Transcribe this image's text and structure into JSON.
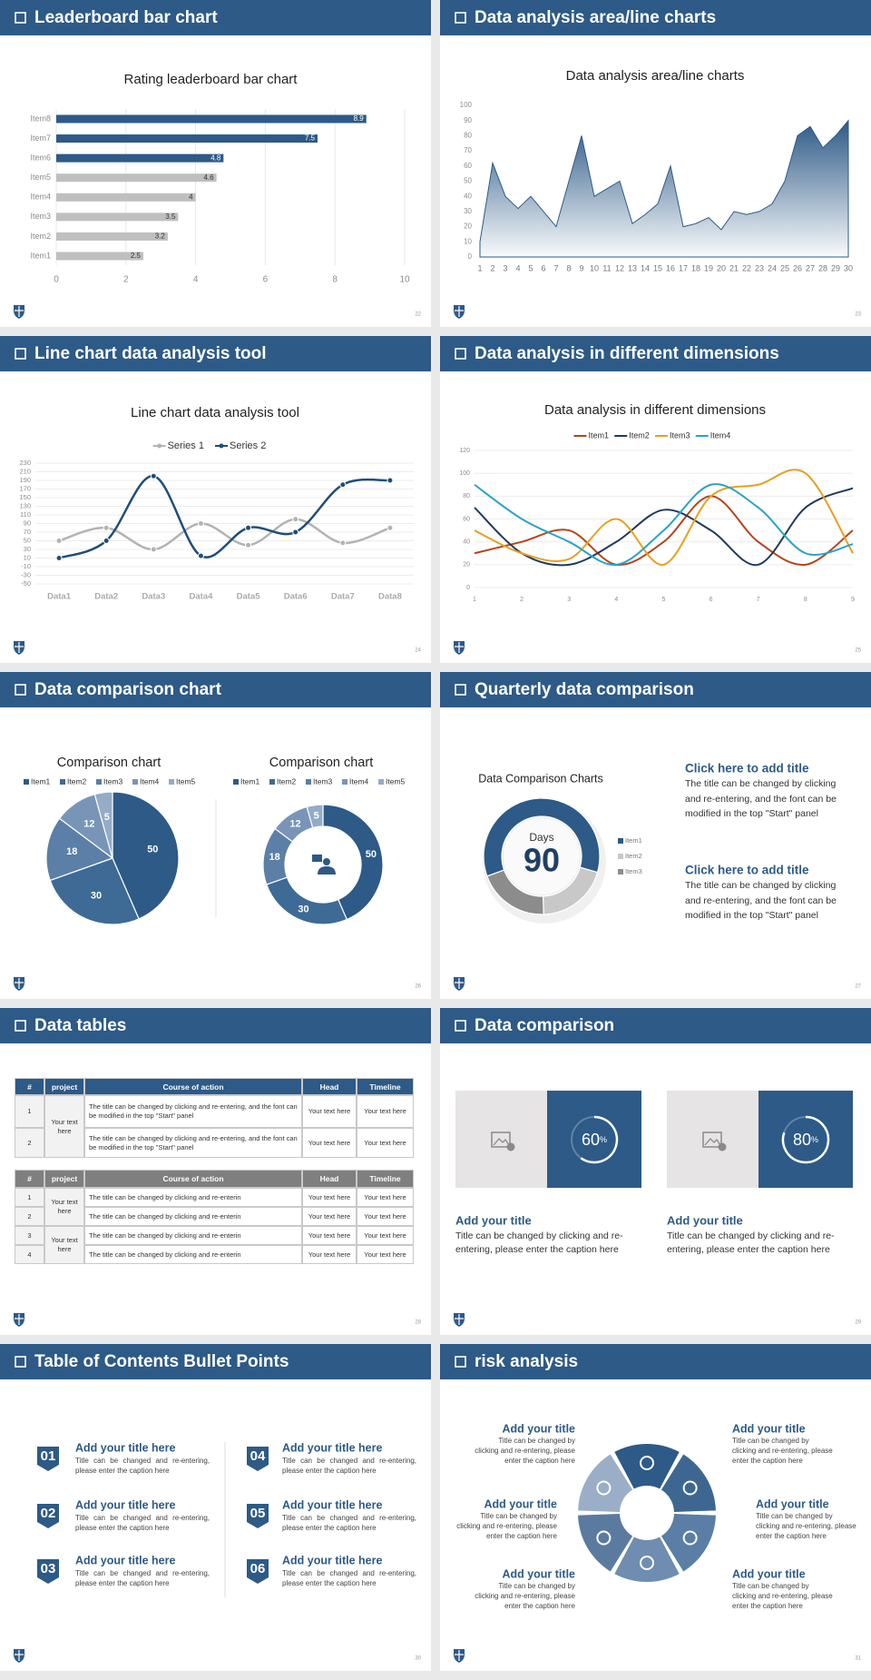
{
  "slides": [
    {
      "header": "Leaderboard bar chart",
      "page": "22",
      "chart_data": {
        "type": "bar",
        "orientation": "horizontal",
        "title": "Rating leaderboard bar chart",
        "categories": [
          "Item1",
          "Item2",
          "Item3",
          "Item4",
          "Item5",
          "Item6",
          "Item7",
          "Item8"
        ],
        "values": [
          2.5,
          3.2,
          3.5,
          4,
          4.6,
          4.8,
          7.5,
          8.9
        ],
        "colors": [
          "#bfbfbf",
          "#bfbfbf",
          "#bfbfbf",
          "#bfbfbf",
          "#bfbfbf",
          "#2d5a87",
          "#2d5a87",
          "#2d5a87"
        ],
        "xlim": [
          0,
          10
        ],
        "xticks": [
          0,
          2,
          4,
          6,
          8,
          10
        ],
        "grid": true
      }
    },
    {
      "header": "Data analysis area/line charts",
      "page": "23",
      "chart_data": {
        "type": "area",
        "title": "Data analysis area/line charts",
        "x": [
          1,
          2,
          3,
          4,
          5,
          6,
          7,
          8,
          9,
          10,
          11,
          12,
          13,
          14,
          15,
          16,
          17,
          18,
          19,
          20,
          21,
          22,
          23,
          24,
          25,
          26,
          27,
          28,
          29,
          30
        ],
        "values": [
          10,
          62,
          40,
          32,
          40,
          30,
          20,
          50,
          80,
          40,
          45,
          50,
          22,
          28,
          35,
          60,
          20,
          22,
          26,
          18,
          30,
          28,
          30,
          35,
          50,
          80,
          86,
          72,
          80,
          90
        ],
        "color": "#2d5a87",
        "xlim": [
          1,
          30
        ],
        "ylim": [
          0,
          100
        ],
        "yticks": [
          0,
          10,
          20,
          30,
          40,
          50,
          60,
          70,
          80,
          90,
          100
        ]
      }
    },
    {
      "header": "Line chart data analysis tool",
      "page": "24",
      "chart_data": {
        "type": "line",
        "smooth": true,
        "markers": true,
        "title": "Line chart data analysis tool",
        "categories": [
          "Data1",
          "Data2",
          "Data3",
          "Data4",
          "Data5",
          "Data6",
          "Data7",
          "Data8"
        ],
        "series": [
          {
            "name": "Series 1",
            "color": "#b3b3b3",
            "values": [
              50,
              80,
              30,
              90,
              40,
              100,
              45,
              80
            ]
          },
          {
            "name": "Series 2",
            "color": "#1f4e79",
            "values": [
              10,
              50,
              200,
              15,
              80,
              70,
              180,
              190
            ]
          }
        ],
        "ylim": [
          -50,
          230
        ],
        "yticks": [
          -50,
          -30,
          -10,
          10,
          30,
          50,
          70,
          90,
          110,
          130,
          150,
          170,
          190,
          210,
          230
        ],
        "grid": true,
        "legend": "top"
      }
    },
    {
      "header": "Data analysis in different dimensions",
      "page": "25",
      "chart_data": {
        "type": "line",
        "smooth": true,
        "markers": false,
        "title": "Data analysis in different dimensions",
        "x": [
          1,
          2,
          3,
          4,
          5,
          6,
          7,
          8,
          9
        ],
        "series": [
          {
            "name": "Item1",
            "color": "#b5451b",
            "values": [
              30,
              40,
              50,
              20,
              40,
              80,
              40,
              20,
              50
            ]
          },
          {
            "name": "Item2",
            "color": "#1f3b5c",
            "values": [
              70,
              30,
              20,
              40,
              68,
              50,
              20,
              70,
              87
            ]
          },
          {
            "name": "Item3",
            "color": "#e8a020",
            "values": [
              50,
              30,
              25,
              60,
              20,
              80,
              90,
              100,
              30
            ]
          },
          {
            "name": "Item4",
            "color": "#2aa3c8",
            "values": [
              90,
              60,
              40,
              20,
              50,
              90,
              70,
              30,
              38
            ]
          }
        ],
        "xlim": [
          1,
          9
        ],
        "ylim": [
          0,
          120
        ],
        "yticks": [
          0,
          20,
          40,
          60,
          80,
          100,
          120
        ],
        "grid": true,
        "legend": "top"
      }
    },
    {
      "header": "Data comparison chart",
      "page": "26",
      "chart_data": [
        {
          "type": "pie",
          "title": "Comparison chart",
          "categories": [
            "Item1",
            "Item2",
            "Item3",
            "Item4",
            "Item5"
          ],
          "values": [
            50,
            30,
            18,
            12,
            5
          ],
          "colors": [
            "#2d5a87",
            "#3e6a96",
            "#5b7fa6",
            "#7895b7",
            "#95abc6"
          ]
        },
        {
          "type": "donut",
          "title": "Comparison chart",
          "categories": [
            "Item1",
            "Item2",
            "Item3",
            "Item4",
            "Item5"
          ],
          "values": [
            50,
            30,
            18,
            12,
            5
          ],
          "colors": [
            "#2d5a87",
            "#3e6a96",
            "#5b7fa6",
            "#7895b7",
            "#95abc6"
          ]
        }
      ]
    },
    {
      "header": "Quarterly data comparison",
      "page": "27",
      "chart_data": {
        "type": "donut",
        "title": "Data Comparison Charts",
        "center_label": "Days",
        "center_value": 90,
        "categories": [
          "Item1",
          "Item2",
          "Item3"
        ],
        "values": [
          60,
          20,
          20
        ],
        "colors": [
          "#2d5a87",
          "#c8c8c8",
          "#8c8c8c"
        ]
      },
      "blocks": [
        {
          "title": "Click here to add title",
          "text": "The title can be changed by clicking and re-entering, and the font can be modified in the top \"Start\" panel"
        },
        {
          "title": "Click here to add title",
          "text": "The title can be changed by clicking and re-entering, and the font can be modified in the top \"Start\" panel"
        }
      ]
    },
    {
      "header": "Data tables",
      "page": "28",
      "tables": [
        {
          "header_color": "#2d5a87",
          "columns": [
            "#",
            "project",
            "Course of action",
            "Head",
            "Timeline"
          ],
          "rows": [
            [
              "1",
              "Your text here",
              "The title can be changed by clicking and re-entering, and the font can be modified in the top \"Start\" panel",
              "Your text here",
              "Your text here"
            ],
            [
              "2",
              null,
              "The title can be changed by clicking and re-entering, and the font can be modified in the top \"Start\" panel",
              "Your text here",
              "Your text here"
            ]
          ]
        },
        {
          "header_color": "#7f7f7f",
          "columns": [
            "#",
            "project",
            "Course of action",
            "Head",
            "Timeline"
          ],
          "rows": [
            [
              "1",
              "Your text here",
              "The title can be changed by clicking and re-enterin",
              "Your text here",
              "Your text here"
            ],
            [
              "2",
              null,
              "The title can be changed by clicking and re-enterin",
              "Your text here",
              "Your text here"
            ],
            [
              "3",
              "Your text here",
              "The title can be changed by clicking and re-enterin",
              "Your text here",
              "Your text here"
            ],
            [
              "4",
              null,
              "The title can be changed by clicking and re-enterin",
              "Your text here",
              "Your text here"
            ]
          ]
        }
      ]
    },
    {
      "header": "Data comparison",
      "page": "29",
      "cards": [
        {
          "value": 60,
          "unit": "%",
          "title": "Add your title",
          "text": "Title can be changed by clicking and re-entering, please enter the caption here"
        },
        {
          "value": 80,
          "unit": "%",
          "title": "Add your title",
          "text": "Title can be changed by clicking and re-entering, please enter the caption here"
        }
      ]
    },
    {
      "header": "Table of Contents Bullet Points",
      "page": "30",
      "toc": [
        {
          "number": "01",
          "title": "Add your title here",
          "text": "Title can be changed and re-entering, please enter the caption here"
        },
        {
          "number": "02",
          "title": "Add your title here",
          "text": "Title can be changed and re-entering, please enter the caption here"
        },
        {
          "number": "03",
          "title": "Add your title here",
          "text": "Title can be changed and re-entering, please enter the caption here"
        },
        {
          "number": "04",
          "title": "Add your title here",
          "text": "Title can be changed and re-entering, please enter the caption here"
        },
        {
          "number": "05",
          "title": "Add your title here",
          "text": "Title can be changed and re-entering, please enter the caption here"
        },
        {
          "number": "06",
          "title": "Add your title here",
          "text": "Title can be changed and re-entering, please enter the caption here"
        }
      ]
    },
    {
      "header": "risk analysis",
      "page": "31",
      "risk": [
        {
          "title": "Add your title",
          "text": "Title can be changed by clicking and re-entering, please enter the caption here"
        },
        {
          "title": "Add your title",
          "text": "Title can be changed by clicking and re-entering, please enter the caption here"
        },
        {
          "title": "Add your title",
          "text": "Title can be changed by clicking and re-entering, please enter the caption here"
        },
        {
          "title": "Add your title",
          "text": "Title can be changed by clicking and re-entering, please enter the caption here"
        },
        {
          "title": "Add your title",
          "text": "Title can be changed by clicking and re-entering, please enter the caption here"
        },
        {
          "title": "Add your title",
          "text": "Title can be changed by clicking and re-entering, please enter the caption here"
        }
      ]
    }
  ]
}
